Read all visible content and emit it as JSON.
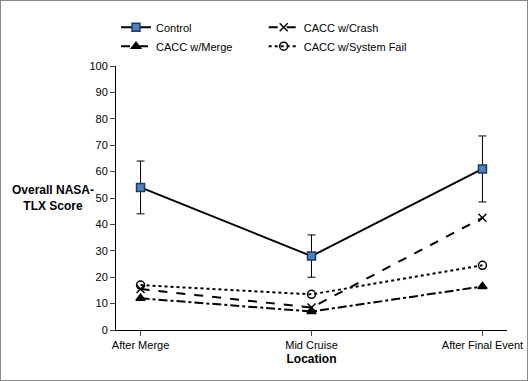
{
  "chart_data": {
    "type": "line",
    "categories": [
      "After Merge",
      "Mid Cruise",
      "After Final Event"
    ],
    "x_label": "Location",
    "y_label": "Overall NASA-TLX Score",
    "ylim": [
      0,
      100
    ],
    "yticks": [
      0,
      10,
      20,
      30,
      40,
      50,
      60,
      70,
      80,
      90,
      100
    ],
    "grid": false,
    "legend": "top",
    "series": [
      {
        "name": "Control",
        "color": "#4f81bd",
        "marker": "square",
        "line_style": "solid",
        "values": [
          54,
          28,
          61
        ],
        "errors": [
          10,
          8,
          12.5
        ]
      },
      {
        "name": "CACC w/Crash",
        "color": "#000000",
        "marker": "x",
        "line_style": "dash",
        "values": [
          15.5,
          8.5,
          42.5
        ]
      },
      {
        "name": "CACC w/Merge",
        "color": "#000000",
        "marker": "triangle",
        "line_style": "dashdot",
        "values": [
          12,
          7,
          16.5
        ]
      },
      {
        "name": "CACC w/System Fail",
        "color": "#000000",
        "marker": "circle-open",
        "line_style": "dot",
        "values": [
          17,
          13.5,
          24.5
        ]
      }
    ]
  }
}
